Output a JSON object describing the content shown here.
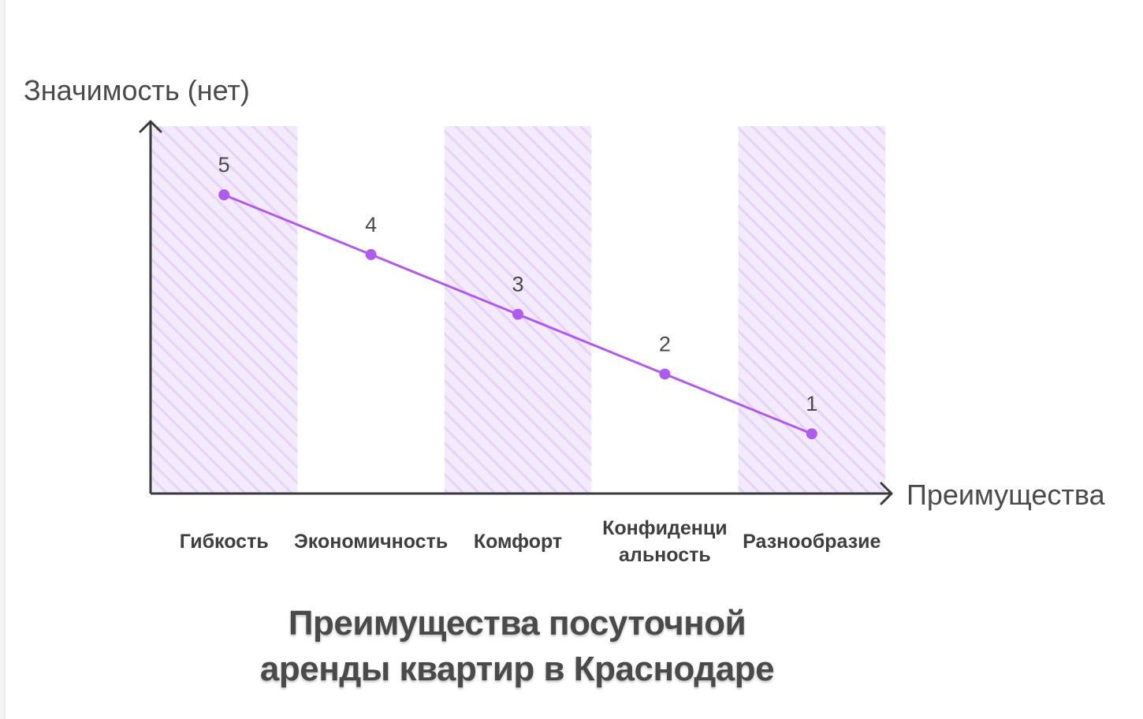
{
  "chart_data": {
    "type": "line",
    "title_lines": [
      "Преимущества посуточной",
      "аренды квартир в Краснодаре"
    ],
    "ylabel": "Значимость (нет)",
    "xlabel": "Преимущества",
    "categories": [
      "Гибкость",
      "Экономичность",
      "Комфорт",
      "Конфиденциальность",
      "Разнообразие"
    ],
    "category_label_lines": [
      [
        "Гибкость"
      ],
      [
        "Экономичность"
      ],
      [
        "Комфорт"
      ],
      [
        "Конфиденци",
        "альность"
      ],
      [
        "Разнообразие"
      ]
    ],
    "values": [
      5,
      4,
      3,
      2,
      1
    ],
    "data_labels": [
      "5",
      "4",
      "3",
      "2",
      "1"
    ],
    "ylim": [
      0,
      6.15
    ],
    "grid": false,
    "alternating_band_fill": "#f0e6fb",
    "alternating_band_hatch": "#e2cdf7",
    "line_color": "#b05bf0",
    "axis_color": "#3a3a3a"
  }
}
